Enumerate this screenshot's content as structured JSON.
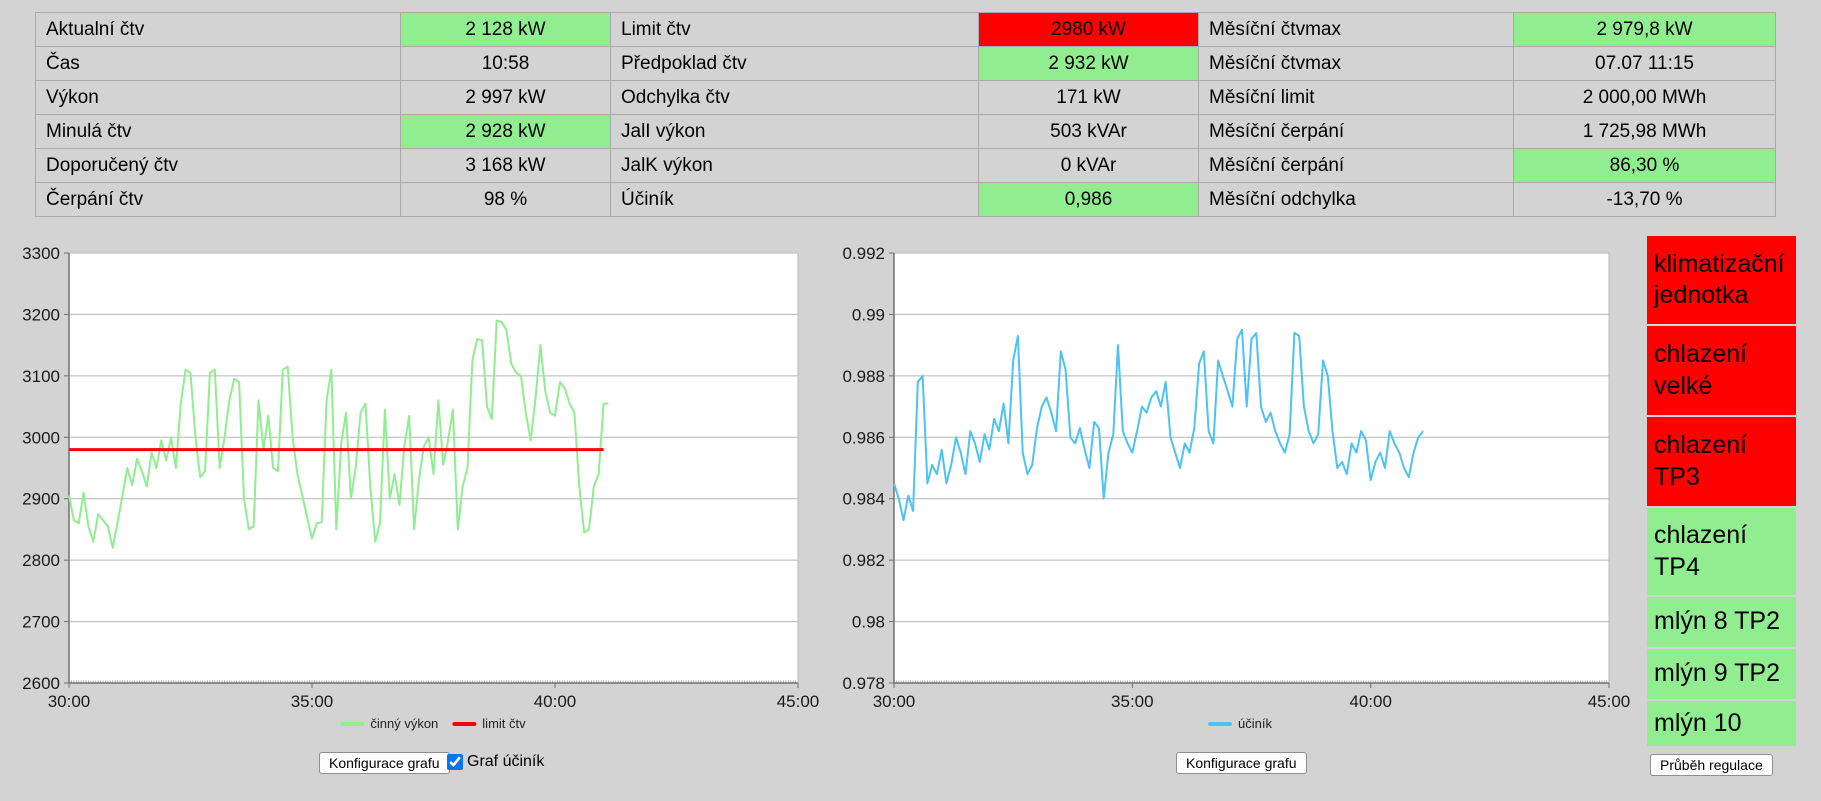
{
  "colors": {
    "highlight_green": "#90ee90",
    "alert_red": "#ff0000",
    "line_green": "#90ee90",
    "line_red": "#ff0000",
    "line_blue": "#4cc3f2",
    "grid": "#b8b8b8",
    "axis": "#707070"
  },
  "stats_table": {
    "rows": [
      [
        {
          "label": "Aktualní čtv",
          "value": "2 128 kW",
          "highlight": "green"
        },
        {
          "label": "Limit čtv",
          "value": "2980 kW",
          "highlight": "red"
        },
        {
          "label": "Měsíční čtvmax",
          "value": "2 979,8 kW",
          "highlight": "green"
        }
      ],
      [
        {
          "label": "Čas",
          "value": "10:58",
          "highlight": null
        },
        {
          "label": "Předpoklad čtv",
          "value": "2 932 kW",
          "highlight": "green"
        },
        {
          "label": "Měsíční čtvmax",
          "value": "07.07 11:15",
          "highlight": null
        }
      ],
      [
        {
          "label": "Výkon",
          "value": "2 997 kW",
          "highlight": null
        },
        {
          "label": "Odchylka čtv",
          "value": "171 kW",
          "highlight": null
        },
        {
          "label": "Měsíční limit",
          "value": "2 000,00 MWh",
          "highlight": null
        }
      ],
      [
        {
          "label": "Minulá čtv",
          "value": "2 928 kW",
          "highlight": "green"
        },
        {
          "label": "JalI výkon",
          "value": "503 kVAr",
          "highlight": null
        },
        {
          "label": "Měsíční čerpání",
          "value": "1 725,98 MWh",
          "highlight": null
        }
      ],
      [
        {
          "label": "Doporučený čtv",
          "value": "3 168 kW",
          "highlight": null
        },
        {
          "label": "JalK výkon",
          "value": "0 kVAr",
          "highlight": null
        },
        {
          "label": "Měsíční čerpání",
          "value": "86,30 %",
          "highlight": "green"
        }
      ],
      [
        {
          "label": "Čerpání čtv",
          "value": "98 %",
          "highlight": null
        },
        {
          "label": "Účiník",
          "value": "0,986",
          "highlight": "green"
        },
        {
          "label": "Měsíční odchylka",
          "value": "-13,70 %",
          "highlight": null
        }
      ]
    ]
  },
  "chart_data": [
    {
      "type": "line",
      "title": "",
      "xlabel": "",
      "ylabel": "",
      "xlim": [
        30,
        45
      ],
      "ylim": [
        2600,
        3300
      ],
      "x_ticks": [
        "30:00",
        "35:00",
        "40:00",
        "45:00"
      ],
      "x_tick_values": [
        30,
        35,
        40,
        45
      ],
      "y_tick_labels": [
        "3300",
        "3200",
        "3100",
        "3000",
        "2900",
        "2800",
        "2700",
        "2600"
      ],
      "y_tick_values": [
        3300,
        3200,
        3100,
        3000,
        2900,
        2800,
        2700,
        2600
      ],
      "grid": true,
      "legend_position": "bottom",
      "x_start": 30,
      "x_step": 0.1,
      "series": [
        {
          "name": "činný výkon",
          "color": "#90ee90",
          "values": [
            2905,
            2865,
            2860,
            2910,
            2855,
            2830,
            2875,
            2865,
            2855,
            2820,
            2862,
            2905,
            2950,
            2922,
            2965,
            2945,
            2920,
            2975,
            2950,
            2995,
            2962,
            3000,
            2950,
            3055,
            3110,
            3105,
            3000,
            2935,
            2945,
            3105,
            3110,
            2950,
            3000,
            3060,
            3095,
            3090,
            2900,
            2850,
            2855,
            3060,
            2980,
            3035,
            2950,
            2945,
            3110,
            3115,
            3000,
            2940,
            2905,
            2870,
            2835,
            2860,
            2862,
            3060,
            3110,
            2850,
            2990,
            3040,
            2900,
            2950,
            3040,
            3055,
            2920,
            2830,
            2860,
            3045,
            2900,
            2940,
            2890,
            2985,
            3035,
            2850,
            2930,
            2985,
            3000,
            2940,
            3060,
            2955,
            2995,
            3045,
            2850,
            2920,
            2950,
            3125,
            3160,
            3158,
            3050,
            3030,
            3190,
            3188,
            3175,
            3120,
            3105,
            3100,
            3040,
            2995,
            3065,
            3150,
            3075,
            3040,
            3035,
            3090,
            3080,
            3055,
            3040,
            2920,
            2845,
            2850,
            2920,
            2940,
            3055,
            3055
          ]
        },
        {
          "name": "limit čtv",
          "color": "#ff0000",
          "constant": 2980,
          "x_end": 41.0
        }
      ]
    },
    {
      "type": "line",
      "title": "",
      "xlabel": "",
      "ylabel": "",
      "xlim": [
        30,
        45
      ],
      "ylim": [
        0.978,
        0.992
      ],
      "x_ticks": [
        "30:00",
        "35:00",
        "40:00",
        "45:00"
      ],
      "x_tick_values": [
        30,
        35,
        40,
        45
      ],
      "y_tick_labels": [
        "0.992",
        "0.99",
        "0.988",
        "0.986",
        "0.984",
        "0.982",
        "0.98",
        "0.978"
      ],
      "y_tick_values": [
        0.992,
        0.99,
        0.988,
        0.986,
        0.984,
        0.982,
        0.98,
        0.978
      ],
      "grid": true,
      "legend_position": "bottom",
      "x_start": 30,
      "x_step": 0.1,
      "series": [
        {
          "name": "účiník",
          "color": "#4cc3f2",
          "values": [
            0.9845,
            0.984,
            0.9833,
            0.9841,
            0.9836,
            0.9878,
            0.988,
            0.9845,
            0.9851,
            0.9848,
            0.9856,
            0.9845,
            0.9851,
            0.986,
            0.9855,
            0.9848,
            0.9862,
            0.9858,
            0.9852,
            0.9861,
            0.9856,
            0.9866,
            0.9862,
            0.9871,
            0.9858,
            0.9885,
            0.9893,
            0.9855,
            0.9848,
            0.9851,
            0.9863,
            0.987,
            0.9873,
            0.9868,
            0.9862,
            0.9888,
            0.9882,
            0.986,
            0.9858,
            0.9863,
            0.9856,
            0.985,
            0.9865,
            0.9863,
            0.984,
            0.9855,
            0.9861,
            0.989,
            0.9862,
            0.9858,
            0.9855,
            0.9862,
            0.987,
            0.9868,
            0.9873,
            0.9875,
            0.987,
            0.9878,
            0.986,
            0.9855,
            0.985,
            0.9858,
            0.9855,
            0.9863,
            0.9884,
            0.9888,
            0.9862,
            0.9858,
            0.9885,
            0.988,
            0.9875,
            0.987,
            0.9892,
            0.9895,
            0.987,
            0.9892,
            0.9894,
            0.987,
            0.9865,
            0.9868,
            0.9862,
            0.9858,
            0.9855,
            0.9861,
            0.9894,
            0.9893,
            0.987,
            0.9862,
            0.9858,
            0.9861,
            0.9885,
            0.988,
            0.9862,
            0.985,
            0.9852,
            0.9848,
            0.9858,
            0.9855,
            0.9862,
            0.9859,
            0.9846,
            0.9852,
            0.9855,
            0.985,
            0.9862,
            0.9858,
            0.9855,
            0.985,
            0.9847,
            0.9855,
            0.986,
            0.9862
          ]
        }
      ]
    }
  ],
  "controls": {
    "left_chart_button": "Konfigurace grafu",
    "left_checkbox_label": "Graf účiník",
    "left_checkbox_checked": true,
    "right_chart_button": "Konfigurace grafu",
    "regulation_button": "Průběh regulace"
  },
  "status_panel": {
    "items": [
      {
        "label": "klimatizační jednotka",
        "state": "red"
      },
      {
        "label": "chlazení velké",
        "state": "red"
      },
      {
        "label": "chlazení TP3",
        "state": "red"
      },
      {
        "label": "chlazení TP4",
        "state": "green"
      },
      {
        "label": "mlýn 8 TP2",
        "state": "green"
      },
      {
        "label": "mlýn 9 TP2",
        "state": "green"
      },
      {
        "label": "mlýn 10",
        "state": "green"
      }
    ]
  }
}
